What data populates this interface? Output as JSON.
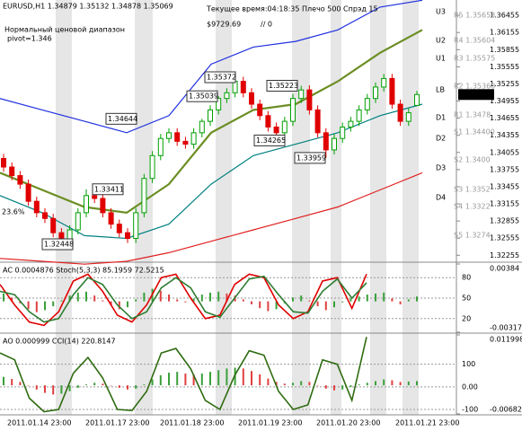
{
  "chart_data": [
    {
      "type": "candlestick",
      "title": "EURUSD,H1  1.34879 1.35132 1.34878 1.35069",
      "subtitle": "Текущее время:04:18:35 Плечо 500 Спрэд 15",
      "annotations": [
        "$9729.69",
        "// 0",
        "Нормальный ценовой диапазон",
        "pivot=1.346",
        "23.6%"
      ],
      "up_color": "#00a000",
      "down_color": "#e00000",
      "open": [
        1.3395,
        1.338,
        1.3365,
        1.335,
        1.332,
        1.33,
        1.329,
        1.3265,
        1.325,
        1.327,
        1.33,
        1.333,
        1.3325,
        1.33,
        1.328,
        1.3265,
        1.3255,
        1.33,
        1.336,
        1.34,
        1.343,
        1.344,
        1.3425,
        1.342,
        1.344,
        1.346,
        1.348,
        1.35,
        1.351,
        1.353,
        1.351,
        1.349,
        1.347,
        1.345,
        1.344,
        1.346,
        1.35,
        1.3515,
        1.348,
        1.344,
        1.341,
        1.343,
        1.345,
        1.346,
        1.348,
        1.35,
        1.352,
        1.3535,
        1.349,
        1.346,
        1.34879
      ],
      "high": [
        1.3403,
        1.3388,
        1.3373,
        1.3358,
        1.3328,
        1.3308,
        1.3298,
        1.3273,
        1.3278,
        1.3308,
        1.33411,
        1.3338,
        1.3333,
        1.3308,
        1.3288,
        1.3273,
        1.3308,
        1.3368,
        1.3408,
        1.3438,
        1.3448,
        1.3448,
        1.3433,
        1.3448,
        1.34644,
        1.3488,
        1.35039,
        1.3518,
        1.35372,
        1.3538,
        1.3518,
        1.3498,
        1.3478,
        1.3458,
        1.3468,
        1.3508,
        1.35223,
        1.3523,
        1.3488,
        1.3448,
        1.3438,
        1.3458,
        1.3468,
        1.3488,
        1.3508,
        1.3528,
        1.3543,
        1.3543,
        1.3498,
        1.3483,
        1.35132
      ],
      "low": [
        1.3372,
        1.3357,
        1.3342,
        1.3312,
        1.3292,
        1.3282,
        1.3257,
        1.32448,
        1.3246,
        1.3262,
        1.3292,
        1.3317,
        1.3292,
        1.3272,
        1.3257,
        1.3247,
        1.3247,
        1.3292,
        1.3352,
        1.3392,
        1.3422,
        1.3417,
        1.3412,
        1.3412,
        1.3432,
        1.3452,
        1.3472,
        1.3492,
        1.3502,
        1.3502,
        1.3482,
        1.3462,
        1.3442,
        1.34265,
        1.3432,
        1.3452,
        1.3492,
        1.3472,
        1.3432,
        1.33959,
        1.3402,
        1.3422,
        1.3442,
        1.3452,
        1.3472,
        1.3492,
        1.3512,
        1.3482,
        1.3452,
        1.3452,
        1.34878
      ],
      "close": [
        1.338,
        1.3365,
        1.335,
        1.332,
        1.33,
        1.329,
        1.3265,
        1.325,
        1.327,
        1.33,
        1.333,
        1.3325,
        1.33,
        1.328,
        1.3265,
        1.3255,
        1.33,
        1.336,
        1.34,
        1.343,
        1.344,
        1.3425,
        1.342,
        1.344,
        1.346,
        1.348,
        1.35,
        1.351,
        1.353,
        1.351,
        1.349,
        1.347,
        1.345,
        1.344,
        1.346,
        1.35,
        1.3515,
        1.348,
        1.344,
        1.341,
        1.343,
        1.345,
        1.346,
        1.348,
        1.35,
        1.352,
        1.3535,
        1.349,
        1.346,
        1.3475,
        1.35069
      ],
      "overlays": [
        {
          "color": "#2030e0",
          "values": [
            1.35,
            1.348,
            1.346,
            1.344,
            1.347,
            1.356,
            1.359,
            1.36,
            1.362,
            1.366,
            1.3672
          ]
        },
        {
          "color": "#6b8e23",
          "values": [
            1.337,
            1.334,
            1.331,
            1.33,
            1.335,
            1.344,
            1.348,
            1.349,
            1.353,
            1.358,
            1.362
          ]
        },
        {
          "color": "#008080",
          "values": [
            1.333,
            1.33,
            1.326,
            1.3255,
            1.328,
            1.335,
            1.34,
            1.342,
            1.344,
            1.347,
            1.349
          ]
        },
        {
          "color": "#e02020",
          "values": [
            1.322,
            1.3215,
            1.321,
            1.3215,
            1.323,
            1.325,
            1.327,
            1.329,
            1.331,
            1.334,
            1.337
          ]
        }
      ],
      "price_labels": [
        1.35372,
        1.35223,
        1.35039,
        1.34644,
        1.34265,
        1.33959,
        1.33411,
        1.32448
      ],
      "level_labels": [
        "U3",
        "U2",
        "U1",
        "LB",
        "D1",
        "D2",
        "D3",
        "D4"
      ],
      "pivot_labels": [
        "R5 1.35653",
        "R4 1.35604",
        "R3 1.35575",
        "R2 1.35360",
        "R1 1.3478",
        "S1 1.34400",
        "S2 1.3400",
        "S3 1.3352",
        "S4 1.3322",
        "S5 1.3274"
      ],
      "ylim": [
        1.32134,
        1.36724
      ],
      "yticks": [
        1.32255,
        1.32555,
        1.32855,
        1.33155,
        1.33455,
        1.33755,
        1.34055,
        1.34355,
        1.34655,
        1.34955,
        1.35255,
        1.35555,
        1.35855,
        1.36155,
        1.36455
      ],
      "time_labels": [
        "2011.01.14 23:00",
        "2011.01.17 23:00",
        "2011.01.18 23:00",
        "2011.01.19 23:00",
        "2011.01.20 23:00",
        "2011.01.21 23:00"
      ]
    },
    {
      "type": "oscillator",
      "title": "AC 0.0004876 Stoch(5,3,3) 85.1959 72.5215",
      "histogram": {
        "values": [
          0.0008,
          0.0004,
          -0.0002,
          -0.0008,
          -0.0011,
          -0.0009,
          -0.0005,
          0.0001,
          0.0006,
          0.0009,
          0.001,
          0.0006,
          0.0001,
          -0.0004,
          -0.0008,
          -0.0006,
          0.0002,
          0.0009,
          0.0013,
          0.0011,
          0.0007,
          0.0002,
          -0.0001,
          0.0003,
          0.0007,
          0.0009,
          0.001,
          0.0008,
          0.0006,
          0.0002,
          -0.0003,
          -0.0007,
          -0.001,
          -0.0008,
          -0.0002,
          0.0004,
          0.0006,
          0.0001,
          -0.0005,
          -0.0009,
          -0.0006,
          -0.0001,
          0.0003,
          0.0005,
          0.0007,
          0.0008,
          0.0009,
          0.0003,
          -0.0003,
          0.0002,
          0.0005
        ],
        "ylim": [
          -0.00317,
          0.00384
        ],
        "yticks": [
          -0.00317,
          0.00384
        ]
      },
      "series": [
        {
          "color": "#e00000",
          "values": [
            70,
            40,
            15,
            10,
            30,
            75,
            85,
            60,
            25,
            15,
            40,
            80,
            85,
            50,
            20,
            25,
            70,
            85,
            80,
            40,
            20,
            30,
            75,
            80,
            35,
            85.1959
          ]
        },
        {
          "color": "#2e7d32",
          "values": [
            60,
            55,
            30,
            15,
            20,
            55,
            80,
            70,
            40,
            20,
            30,
            65,
            80,
            65,
            30,
            22,
            50,
            78,
            82,
            55,
            30,
            28,
            60,
            78,
            50,
            72.5215
          ]
        }
      ],
      "ylim": [
        0,
        100
      ],
      "yticks": [
        20,
        50,
        80
      ]
    },
    {
      "type": "oscillator",
      "title": "AO 0.000999 CCI(14) 220.8147",
      "histogram": {
        "values": [
          0.002,
          0.0015,
          0.0008,
          0.0,
          -0.001,
          -0.0018,
          -0.0022,
          -0.002,
          -0.0014,
          -0.0006,
          0.0002,
          0.0006,
          0.0004,
          0.0,
          -0.0006,
          -0.001,
          -0.0008,
          0.0002,
          0.0014,
          0.0024,
          0.003,
          0.0032,
          0.0028,
          0.0026,
          0.0028,
          0.0032,
          0.0036,
          0.004,
          0.0042,
          0.004,
          0.0034,
          0.0026,
          0.0016,
          0.0008,
          0.0004,
          0.0006,
          0.001,
          0.0008,
          0.0,
          -0.0008,
          -0.0012,
          -0.001,
          -0.0004,
          0.0002,
          0.0006,
          0.001,
          0.0014,
          0.0012,
          0.0008,
          0.0009,
          0.001
        ],
        "ylim": [
          -0.00682,
          0.011998
        ],
        "yticks": [
          -0.00682,
          0.011998
        ]
      },
      "series": [
        {
          "color": "#2e6b10",
          "values": [
            150,
            120,
            -50,
            -110,
            -100,
            60,
            130,
            40,
            -100,
            -105,
            -20,
            150,
            170,
            80,
            -60,
            -100,
            50,
            160,
            140,
            -20,
            -100,
            -80,
            120,
            100,
            -60,
            220.8147
          ]
        }
      ],
      "ylim": [
        -120,
        230
      ],
      "yticks": [
        -100,
        {
          "value": 0,
          "label": "0.00"
        },
        100
      ]
    }
  ]
}
